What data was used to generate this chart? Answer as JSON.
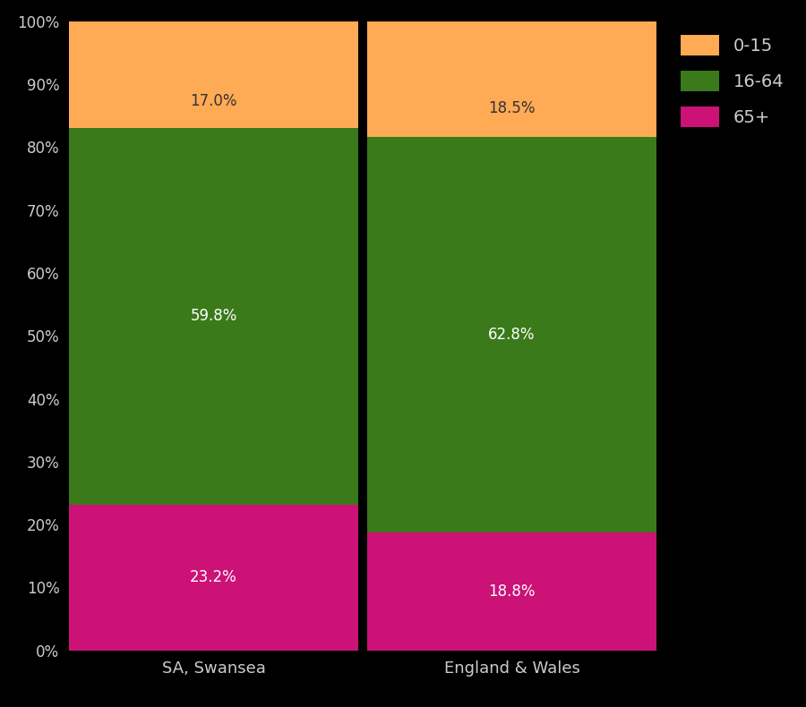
{
  "categories": [
    "SA, Swansea",
    "England & Wales"
  ],
  "segments": {
    "65+": [
      23.2,
      18.8
    ],
    "16-64": [
      59.8,
      62.8
    ],
    "0-15": [
      17.0,
      18.5
    ]
  },
  "colors": {
    "65+": "#CC1177",
    "16-64": "#3A7A1A",
    "0-15": "#FFAA55"
  },
  "background_color": "#000000",
  "text_color": "#CCCCCC",
  "yticks": [
    0,
    10,
    20,
    30,
    40,
    50,
    60,
    70,
    80,
    90,
    100
  ],
  "ytick_labels": [
    "0%",
    "10%",
    "20%",
    "30%",
    "40%",
    "50%",
    "60%",
    "70%",
    "80%",
    "90%",
    "100%"
  ],
  "legend_order": [
    "0-15",
    "16-64",
    "65+"
  ],
  "figsize": [
    9.0,
    7.9
  ],
  "dpi": 100,
  "bar_width": 0.97,
  "label_0_15_color": "#333333",
  "label_other_color": "white",
  "label_fontsize": 12
}
